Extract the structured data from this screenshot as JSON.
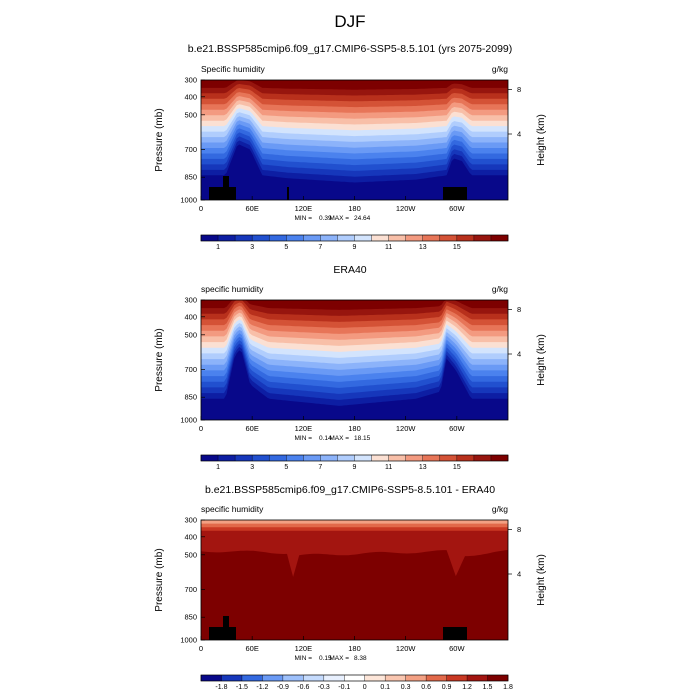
{
  "figure": {
    "title": "DJF"
  },
  "panel_titles": [
    "b.e21.BSSP585cmip6.f09_g17.CMIP6-SSP5-8.5.101 (yrs 2075-2099)",
    "ERA40",
    "b.e21.BSSP585cmip6.f09_g17.CMIP6-SSP5-8.5.101 - ERA40"
  ],
  "chart_data": [
    {
      "type": "heatmap",
      "title": "b.e21.BSSP585cmip6.f09_g17.CMIP6-SSP5-8.5.101 (yrs 2075-2099)",
      "left_label": "Specific humidity",
      "units": "g/kg",
      "ylabel": "Pressure (mb)",
      "y2label": "Height (km)",
      "x_ticks": [
        "0",
        "60E",
        "120E",
        "180",
        "120W",
        "60W"
      ],
      "y_ticks": [
        "300",
        "400",
        "500",
        "700",
        "850",
        "1000"
      ],
      "y2_ticks": [
        "8",
        "4"
      ],
      "stats": {
        "min": "0.39",
        "max": "24.64"
      },
      "colorbar_labels": [
        "1",
        "3",
        "5",
        "7",
        "9",
        "11",
        "13",
        "15"
      ]
    },
    {
      "type": "heatmap",
      "title": "ERA40",
      "left_label": "specific humidity",
      "units": "g/kg",
      "ylabel": "Pressure (mb)",
      "y2label": "Height (km)",
      "x_ticks": [
        "0",
        "60E",
        "120E",
        "180",
        "120W",
        "60W"
      ],
      "y_ticks": [
        "300",
        "400",
        "500",
        "700",
        "850",
        "1000"
      ],
      "y2_ticks": [
        "8",
        "4"
      ],
      "stats": {
        "min": "0.14",
        "max": "18.15"
      },
      "colorbar_labels": [
        "1",
        "3",
        "5",
        "7",
        "9",
        "11",
        "13",
        "15"
      ]
    },
    {
      "type": "heatmap",
      "title": "b.e21.BSSP585cmip6.f09_g17.CMIP6-SSP5-8.5.101 - ERA40",
      "left_label": "specific humidity",
      "units": "g/kg",
      "ylabel": "Pressure (mb)",
      "y2label": "Height (km)",
      "x_ticks": [
        "0",
        "60E",
        "120E",
        "180",
        "120W",
        "60W"
      ],
      "y_ticks": [
        "300",
        "400",
        "500",
        "700",
        "850",
        "1000"
      ],
      "y2_ticks": [
        "8",
        "4"
      ],
      "stats": {
        "min": "0.15",
        "max": "8.38"
      },
      "colorbar_labels": [
        "-1.8",
        "-1.5",
        "-1.2",
        "-0.9",
        "-0.6",
        "-0.3",
        "-0.1",
        "0",
        "0.1",
        "0.3",
        "0.6",
        "0.9",
        "1.2",
        "1.5",
        "1.8"
      ]
    }
  ],
  "colors": {
    "abs_scale": [
      "#08088a",
      "#0d1ea3",
      "#1637bb",
      "#2150cf",
      "#3369e0",
      "#4b82ee",
      "#6a9af5",
      "#8cb3fa",
      "#b0cdfd",
      "#d3e4fd",
      "#fbe0d3",
      "#f8bfa8",
      "#f39a80",
      "#e77558",
      "#d45236",
      "#b8301c",
      "#97150e",
      "#7d0000"
    ],
    "diff_scale": [
      "#08088a",
      "#1637bb",
      "#3369e0",
      "#6a9af5",
      "#9dc0fb",
      "#c5dbfd",
      "#e8f0fe",
      "#ffffff",
      "#fde6d9",
      "#f9c6b0",
      "#f3a083",
      "#e2694a",
      "#c93823",
      "#a31510",
      "#7d0000"
    ],
    "topography": "#000000"
  }
}
